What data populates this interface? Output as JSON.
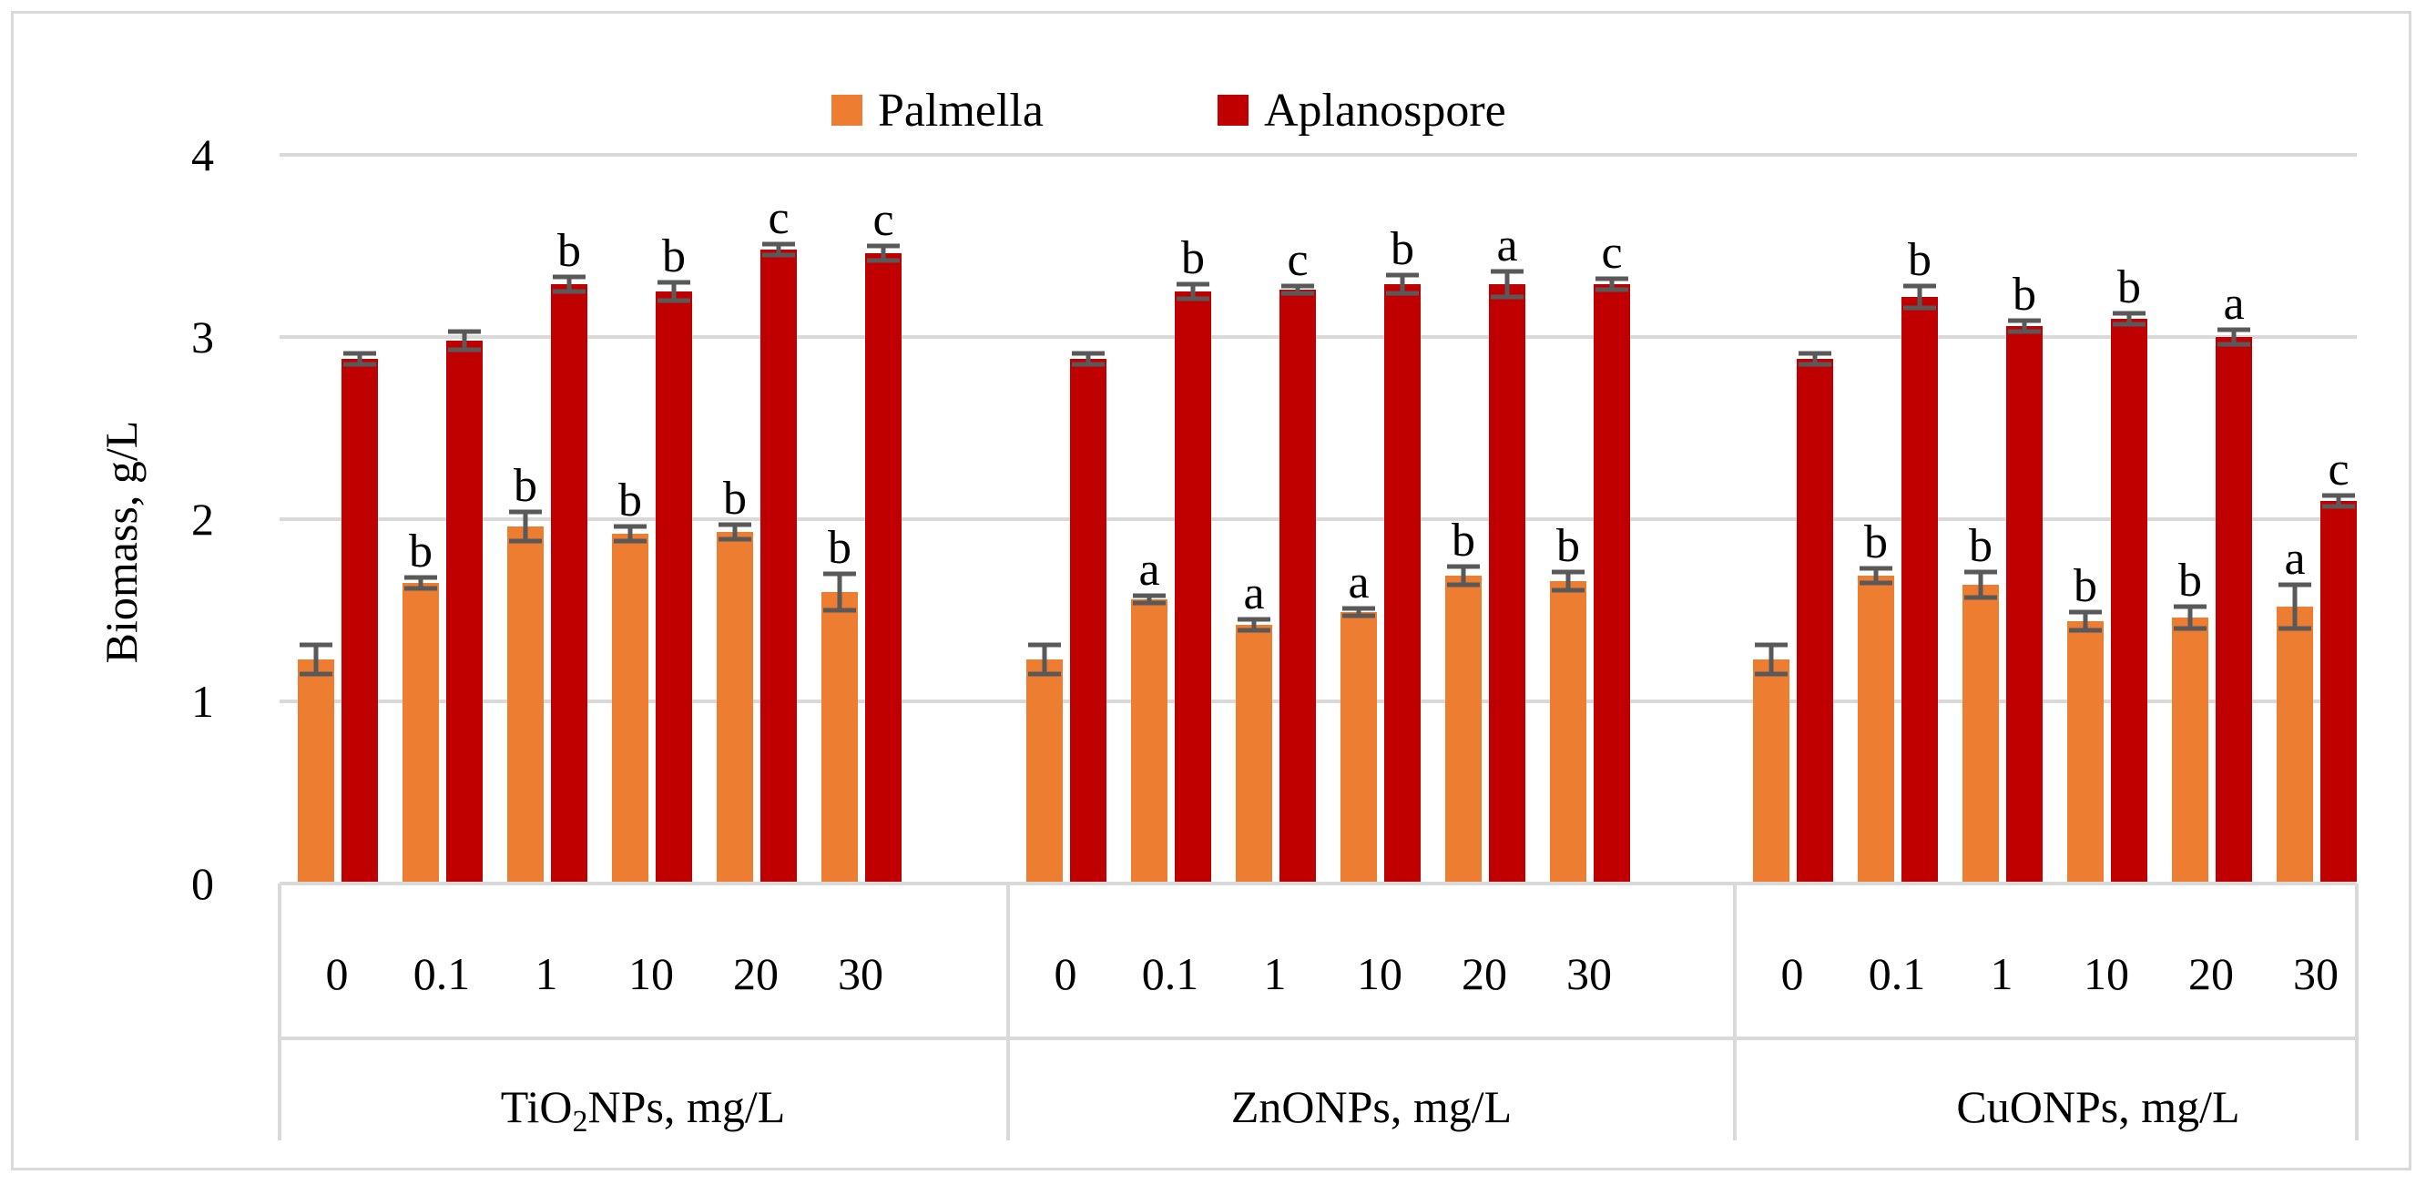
{
  "chart_data": {
    "type": "bar",
    "ylabel": "Biomass, g/L",
    "ylim": [
      0,
      4
    ],
    "yticks": [
      "0",
      "1",
      "2",
      "3",
      "4"
    ],
    "grid": true,
    "legend_position": "top-center",
    "colors": {
      "Palmella": "#ed7d31",
      "Aplanospore": "#c00000",
      "error": "#595959",
      "grid": "#d9d9d9"
    },
    "groups": [
      {
        "label_main": "TiO",
        "label_sub": "2",
        "label_rest": "NPs, mg/L",
        "categories": [
          "0",
          "0.1",
          "1",
          "10",
          "20",
          "30"
        ],
        "series": [
          {
            "name": "Palmella",
            "values": [
              1.23,
              1.65,
              1.96,
              1.92,
              1.93,
              1.6
            ],
            "errors": [
              0.08,
              0.03,
              0.08,
              0.04,
              0.04,
              0.1
            ],
            "labels": [
              "",
              "b",
              "b",
              "b",
              "b",
              "b"
            ]
          },
          {
            "name": "Aplanospore",
            "values": [
              2.88,
              2.98,
              3.29,
              3.25,
              3.48,
              3.46
            ],
            "errors": [
              0.03,
              0.05,
              0.04,
              0.05,
              0.03,
              0.04
            ],
            "labels": [
              "",
              "",
              "b",
              "b",
              "c",
              "c"
            ]
          }
        ]
      },
      {
        "label_main": "ZnONPs, mg/L",
        "label_sub": "",
        "label_rest": "",
        "categories": [
          "0",
          "0.1",
          "1",
          "10",
          "20",
          "30"
        ],
        "series": [
          {
            "name": "Palmella",
            "values": [
              1.23,
              1.56,
              1.42,
              1.49,
              1.69,
              1.66
            ],
            "errors": [
              0.08,
              0.02,
              0.03,
              0.02,
              0.05,
              0.05
            ],
            "labels": [
              "",
              "a",
              "a",
              "a",
              "b",
              "b"
            ]
          },
          {
            "name": "Aplanospore",
            "values": [
              2.88,
              3.25,
              3.26,
              3.29,
              3.29,
              3.29
            ],
            "errors": [
              0.03,
              0.04,
              0.02,
              0.05,
              0.07,
              0.03
            ],
            "labels": [
              "",
              "b",
              "c",
              "b",
              "a",
              "c"
            ]
          }
        ]
      },
      {
        "label_main": "CuONPs, mg/L",
        "label_sub": "",
        "label_rest": "",
        "categories": [
          "0",
          "0.1",
          "1",
          "10",
          "20",
          "30"
        ],
        "series": [
          {
            "name": "Palmella",
            "values": [
              1.23,
              1.69,
              1.64,
              1.44,
              1.46,
              1.52
            ],
            "errors": [
              0.08,
              0.04,
              0.07,
              0.05,
              0.06,
              0.12
            ],
            "labels": [
              "",
              "b",
              "b",
              "b",
              "b",
              "a"
            ]
          },
          {
            "name": "Aplanospore",
            "values": [
              2.88,
              3.22,
              3.06,
              3.1,
              3.0,
              2.1
            ],
            "errors": [
              0.03,
              0.06,
              0.03,
              0.03,
              0.04,
              0.03
            ],
            "labels": [
              "",
              "b",
              "b",
              "b",
              "a",
              "c"
            ]
          }
        ]
      }
    ]
  }
}
